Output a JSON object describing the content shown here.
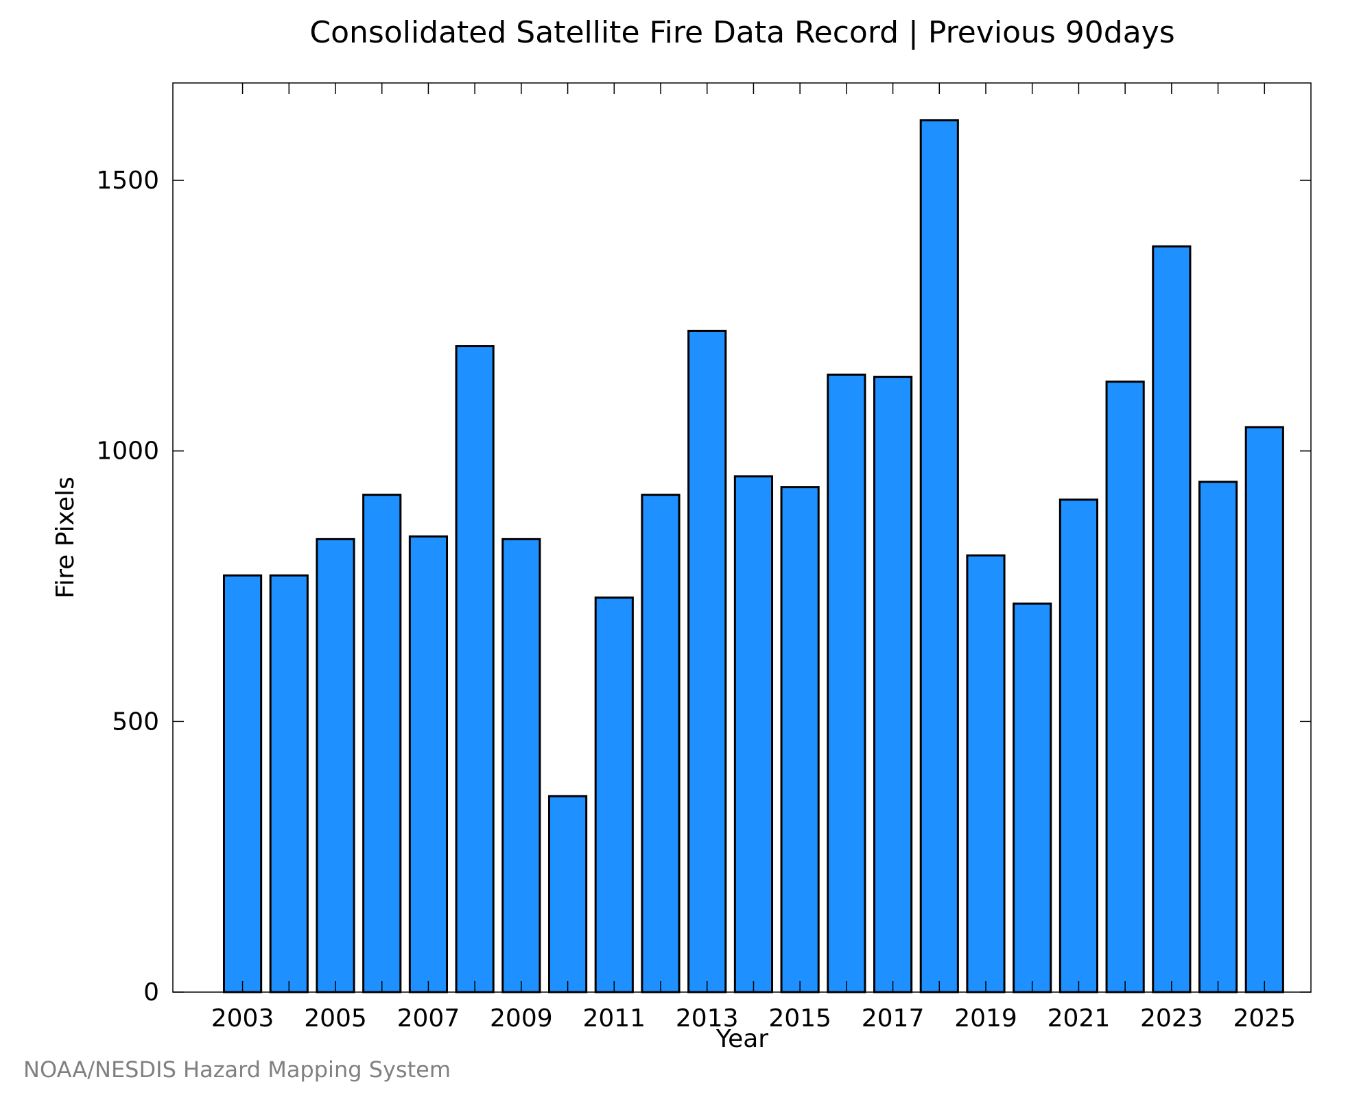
{
  "chart_data": {
    "type": "bar",
    "title": "Consolidated Satellite Fire Data Record | Previous 90days",
    "xlabel": "Year",
    "ylabel": "Fire Pixels",
    "categories": [
      "2003",
      "2004",
      "2005",
      "2006",
      "2007",
      "2008",
      "2009",
      "2010",
      "2011",
      "2012",
      "2013",
      "2014",
      "2015",
      "2016",
      "2017",
      "2018",
      "2019",
      "2020",
      "2021",
      "2022",
      "2023",
      "2024",
      "2025"
    ],
    "values": [
      770,
      770,
      837,
      919,
      842,
      1194,
      837,
      362,
      729,
      919,
      1222,
      953,
      933,
      1141,
      1137,
      1611,
      807,
      718,
      910,
      1128,
      1378,
      943,
      1044
    ],
    "ylim": [
      0,
      1680
    ],
    "xlim": [
      2001.5,
      2026
    ],
    "y_ticks": [
      "0",
      "500",
      "1000",
      "1500"
    ],
    "x_tick_labels": [
      "2003",
      "2005",
      "2007",
      "2009",
      "2011",
      "2013",
      "2015",
      "2017",
      "2019",
      "2021",
      "2023",
      "2025"
    ],
    "bar_color": "#1e90ff",
    "edge_color": "#000000",
    "grid": false,
    "legend": "none"
  },
  "credit": "NOAA/NESDIS Hazard Mapping System"
}
